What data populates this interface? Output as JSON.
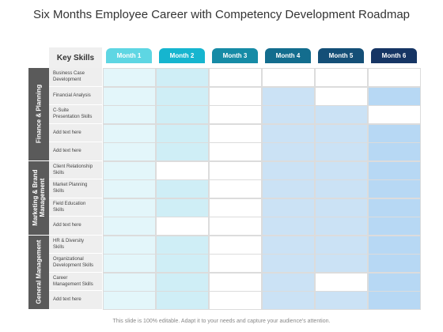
{
  "title": "Six Months Employee Career with Competency Development Roadmap",
  "footer": "This slide is 100% editable. Adapt it to your needs and capture your audience's attention.",
  "header": {
    "key_skills": "Key Skills"
  },
  "months": [
    {
      "label": "Month 1",
      "color": "#5ed6e3"
    },
    {
      "label": "Month 2",
      "color": "#16b5cf"
    },
    {
      "label": "Month 3",
      "color": "#168ba6"
    },
    {
      "label": "Month 4",
      "color": "#136d8e"
    },
    {
      "label": "Month 5",
      "color": "#144f77"
    },
    {
      "label": "Month 6",
      "color": "#163564"
    }
  ],
  "categories": [
    {
      "label": "Finance & Planning",
      "rows": [
        0,
        4
      ]
    },
    {
      "label": "Marketing & Brand Management",
      "rows": [
        5,
        8
      ]
    },
    {
      "label": "General Management",
      "rows": [
        9,
        12
      ]
    }
  ],
  "skills": [
    "Business Case Development",
    "Financial Analysis",
    "C-Suite Presentation Skills",
    "Add text here",
    "Add text here",
    "Client Relationship Skills",
    "Market Planning Skills",
    "Field Education Skills",
    "Add text here",
    "HR & Diversity Skills",
    "Organizational Development Skills",
    "Career Management Skills",
    "Add text here"
  ],
  "fill_colors": {
    "0": "#ffffff",
    "1": "#e3f6fa",
    "2": "#cfeef6",
    "3": "#cbe2f5",
    "4": "#b7d8f4"
  },
  "grid": [
    [
      1,
      2,
      0,
      0,
      0,
      0
    ],
    [
      1,
      2,
      0,
      3,
      0,
      4
    ],
    [
      1,
      2,
      0,
      3,
      3,
      0
    ],
    [
      1,
      2,
      0,
      3,
      3,
      4
    ],
    [
      1,
      2,
      0,
      3,
      3,
      4
    ],
    [
      1,
      0,
      0,
      3,
      3,
      4
    ],
    [
      1,
      2,
      0,
      3,
      3,
      4
    ],
    [
      1,
      2,
      0,
      3,
      3,
      4
    ],
    [
      1,
      0,
      0,
      3,
      3,
      4
    ],
    [
      1,
      2,
      0,
      3,
      3,
      4
    ],
    [
      1,
      2,
      0,
      3,
      3,
      4
    ],
    [
      1,
      2,
      0,
      3,
      0,
      4
    ],
    [
      1,
      2,
      0,
      3,
      3,
      4
    ]
  ]
}
